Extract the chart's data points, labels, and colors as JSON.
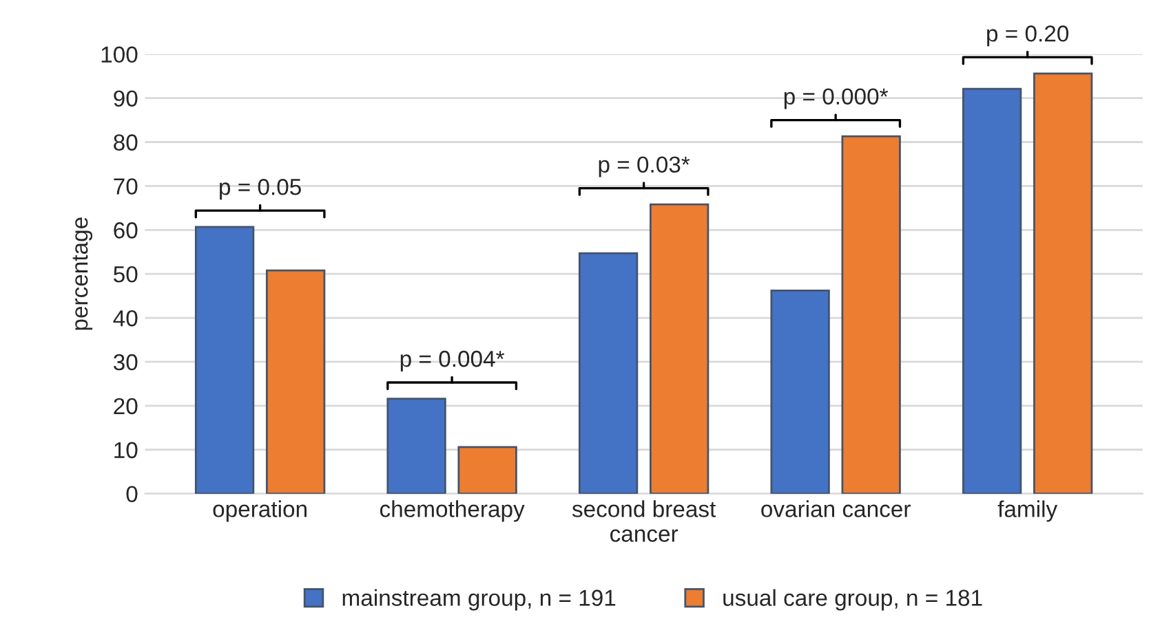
{
  "chart_data": {
    "type": "bar",
    "ylabel": "percentage",
    "categories": [
      "operation",
      "chemotherapy",
      "second breast\ncancer",
      "ovarian cancer",
      "family"
    ],
    "series": [
      {
        "name": "mainstream group, n = 191",
        "color": "#4472c4",
        "values": [
          60.7,
          21.6,
          54.7,
          46.2,
          92.1
        ]
      },
      {
        "name": "usual care group, n = 181",
        "color": "#ed7d31",
        "values": [
          50.8,
          10.6,
          65.8,
          81.3,
          95.6
        ]
      }
    ],
    "ylim": [
      0,
      100
    ],
    "yticks": [
      0,
      10,
      20,
      30,
      40,
      50,
      60,
      70,
      80,
      90,
      100
    ],
    "grid": "y",
    "legend": "bottom",
    "annotations": [
      "p = 0.05",
      "p = 0.004*",
      "p = 0.03*",
      "p = 0.000*",
      "p = 0.20"
    ]
  }
}
